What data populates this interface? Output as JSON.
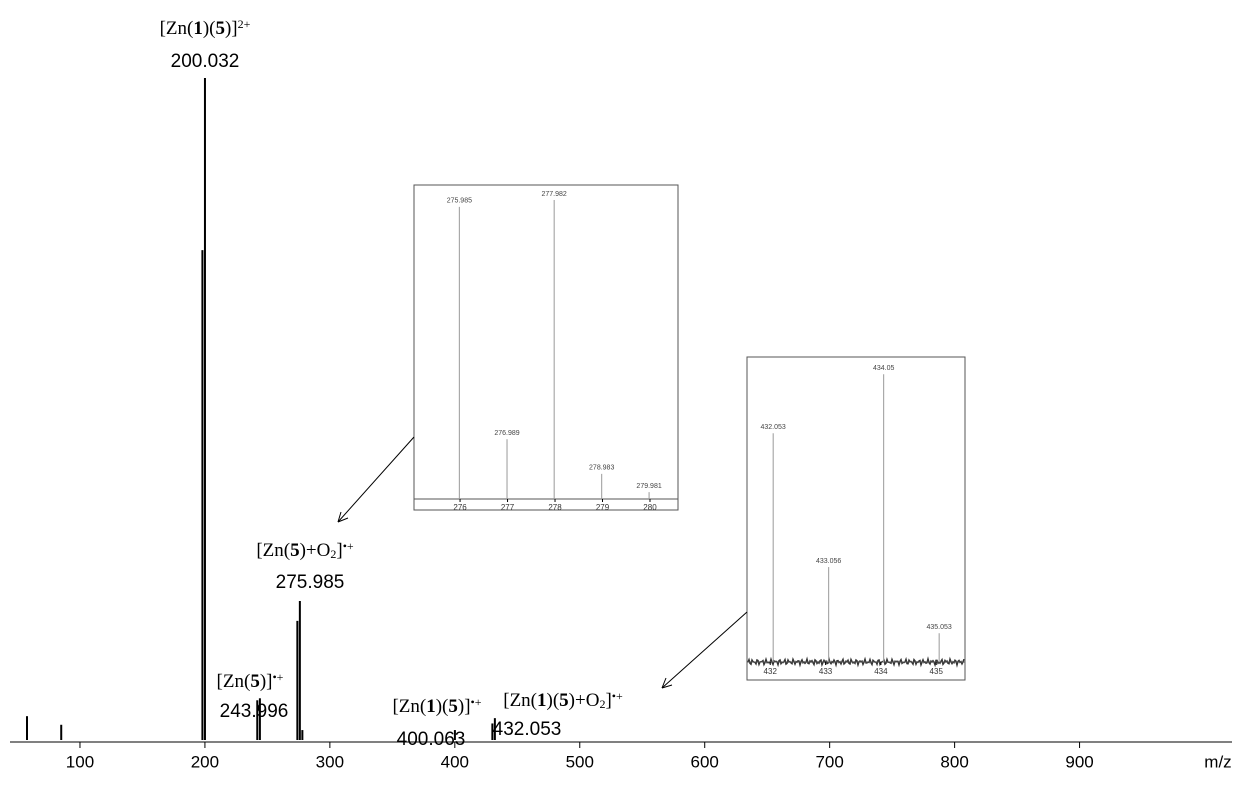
{
  "chart_data": [
    {
      "type": "stem",
      "color": "#000000",
      "x": [
        57.6,
        85,
        198,
        200.032,
        241.9,
        243.996,
        273.98,
        275.985,
        277.98,
        400.063,
        430.06,
        432.053
      ],
      "values": [
        3.6,
        2.3,
        74,
        100,
        6.0,
        6.3,
        18,
        21,
        1.5,
        1.5,
        2.5,
        3.3
      ],
      "xlim": [
        44,
        1022
      ],
      "xticks": [
        100,
        200,
        300,
        400,
        500,
        600,
        700,
        800,
        900
      ],
      "ylim": [
        0,
        100
      ],
      "x_label": "m/z",
      "annotations": [
        {
          "formula": [
            {
              "text": "[Zn("
            },
            {
              "text": "1",
              "style": "bold"
            },
            {
              "text": ")("
            },
            {
              "text": "5",
              "style": "bold"
            },
            {
              "text": ")]"
            },
            {
              "text": "2+",
              "style": "sup"
            }
          ],
          "label": "200.032"
        },
        {
          "formula": [
            {
              "text": "[Zn("
            },
            {
              "text": "5",
              "style": "bold"
            },
            {
              "text": ")+O"
            },
            {
              "text": "2",
              "style": "sub"
            },
            {
              "text": "]"
            },
            {
              "text": "•+",
              "style": "sup"
            }
          ],
          "label": "275.985"
        },
        {
          "formula": [
            {
              "text": "[Zn("
            },
            {
              "text": "5",
              "style": "bold"
            },
            {
              "text": ")]"
            },
            {
              "text": "•+",
              "style": "sup"
            }
          ],
          "label": "243.996"
        },
        {
          "formula": [
            {
              "text": "[Zn("
            },
            {
              "text": "1",
              "style": "bold"
            },
            {
              "text": ")("
            },
            {
              "text": "5",
              "style": "bold"
            },
            {
              "text": ")]"
            },
            {
              "text": "•+",
              "style": "sup"
            }
          ],
          "label": "400.063"
        },
        {
          "formula": [
            {
              "text": "[Zn("
            },
            {
              "text": "1",
              "style": "bold"
            },
            {
              "text": ")("
            },
            {
              "text": "5",
              "style": "bold"
            },
            {
              "text": ")+O"
            },
            {
              "text": "2",
              "style": "sub"
            },
            {
              "text": "]"
            },
            {
              "text": "•+",
              "style": "sup"
            }
          ],
          "label": "432.053"
        }
      ]
    },
    {
      "type": "stem",
      "color": "#999999",
      "x": [
        275.985,
        276.989,
        277.982,
        278.983,
        279.981
      ],
      "values": [
        97.7,
        20,
        100,
        8.4,
        2.3
      ],
      "xlim": [
        275.03,
        280.59
      ],
      "xticks": [
        276,
        277,
        278,
        279,
        280
      ],
      "ylim": [
        0,
        105
      ]
    },
    {
      "type": "stem",
      "color": "#999999",
      "x": [
        432.053,
        433.056,
        434.05,
        435.053
      ],
      "values": [
        79.5,
        33,
        100,
        10
      ],
      "xlim": [
        431.58,
        435.52
      ],
      "xticks": [
        432,
        433,
        434,
        435
      ],
      "ylim": [
        0,
        106
      ]
    }
  ]
}
